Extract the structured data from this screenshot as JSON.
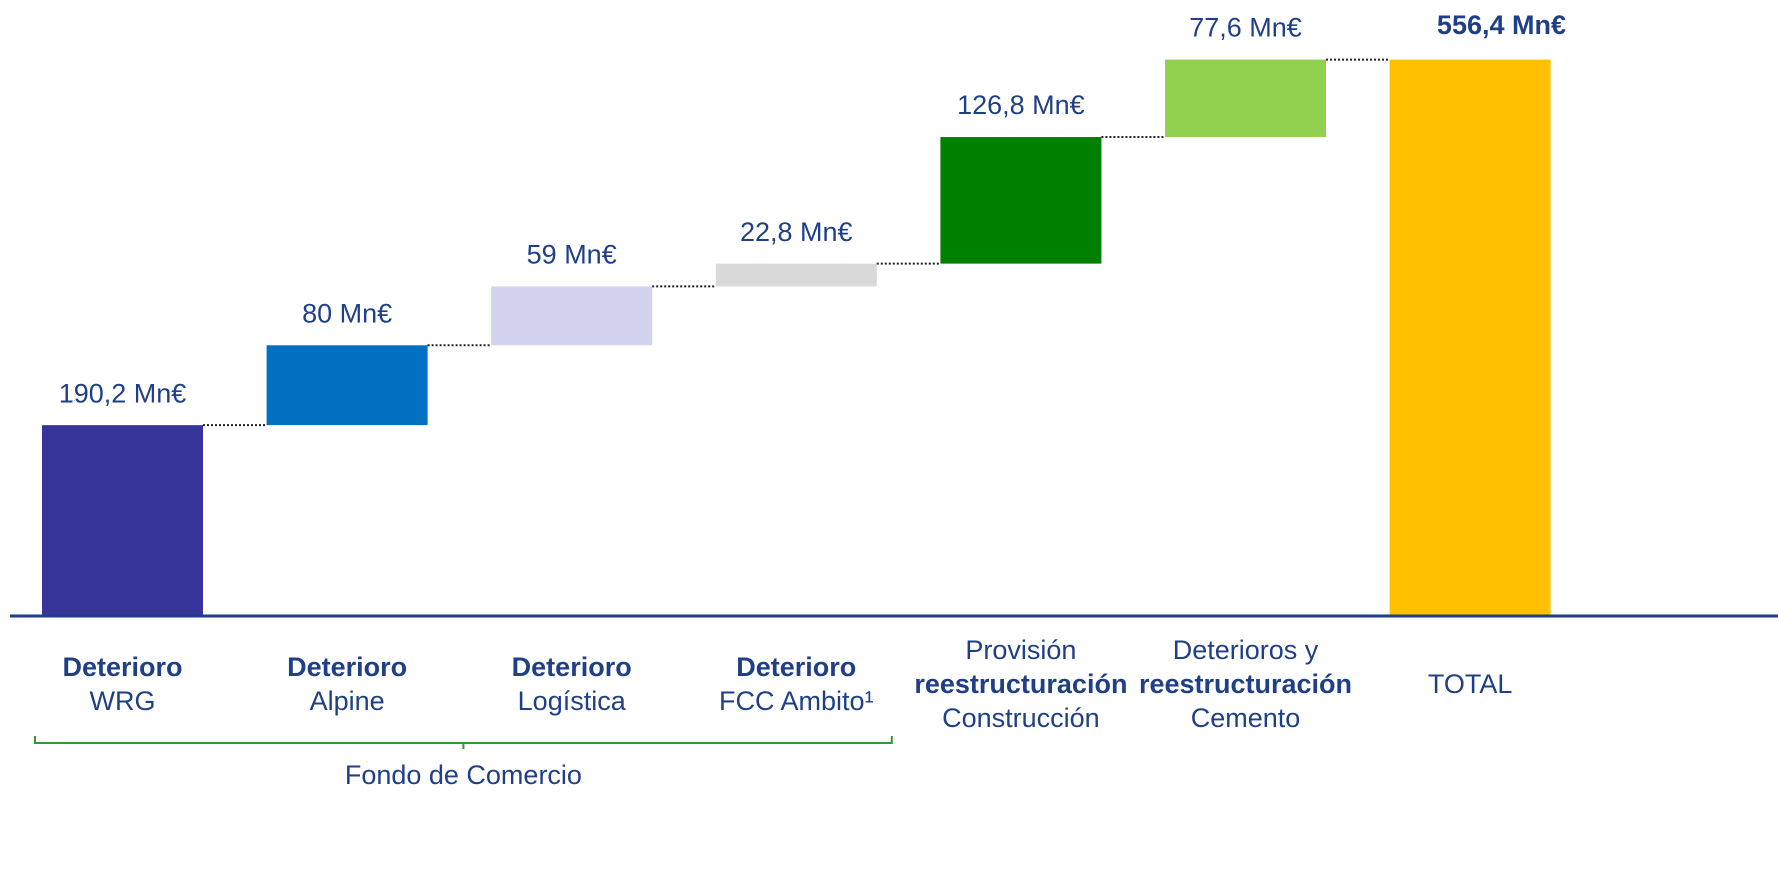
{
  "chart_data": {
    "type": "waterfall",
    "categories": [
      [
        "Deterioro",
        "WRG"
      ],
      [
        "Deterioro",
        "Alpine"
      ],
      [
        "Deterioro",
        "Logística"
      ],
      [
        "Deterioro",
        "FCC Ambito¹"
      ],
      [
        "Provisión",
        "reestructuración",
        "Construcción"
      ],
      [
        "Deterioros y",
        "reestructuración",
        "Cemento"
      ],
      [
        "TOTAL"
      ]
    ],
    "category_bold": [
      [
        true,
        false
      ],
      [
        true,
        false
      ],
      [
        true,
        false
      ],
      [
        true,
        false
      ],
      [
        false,
        true,
        false
      ],
      [
        false,
        true,
        false
      ],
      [
        false
      ]
    ],
    "values": [
      190.2,
      80,
      59,
      22.8,
      126.8,
      77.6,
      556.4
    ],
    "value_labels": [
      "190,2 Mn€",
      "80 Mn€",
      "59 Mn€",
      "22,8 Mn€",
      "126,8 Mn€",
      "77,6 Mn€",
      "556,4 Mn€"
    ],
    "is_total": [
      false,
      false,
      false,
      false,
      false,
      false,
      true
    ],
    "colors": [
      "#37349a",
      "#0070c0",
      "#d3d3f0",
      "#d9d9d9",
      "#008000",
      "#92d050",
      "#ffc000"
    ],
    "ylim": [
      0,
      558
    ],
    "bracket": {
      "label": "Fondo de Comercio",
      "from": 0,
      "to": 3,
      "color": "#339933"
    }
  }
}
